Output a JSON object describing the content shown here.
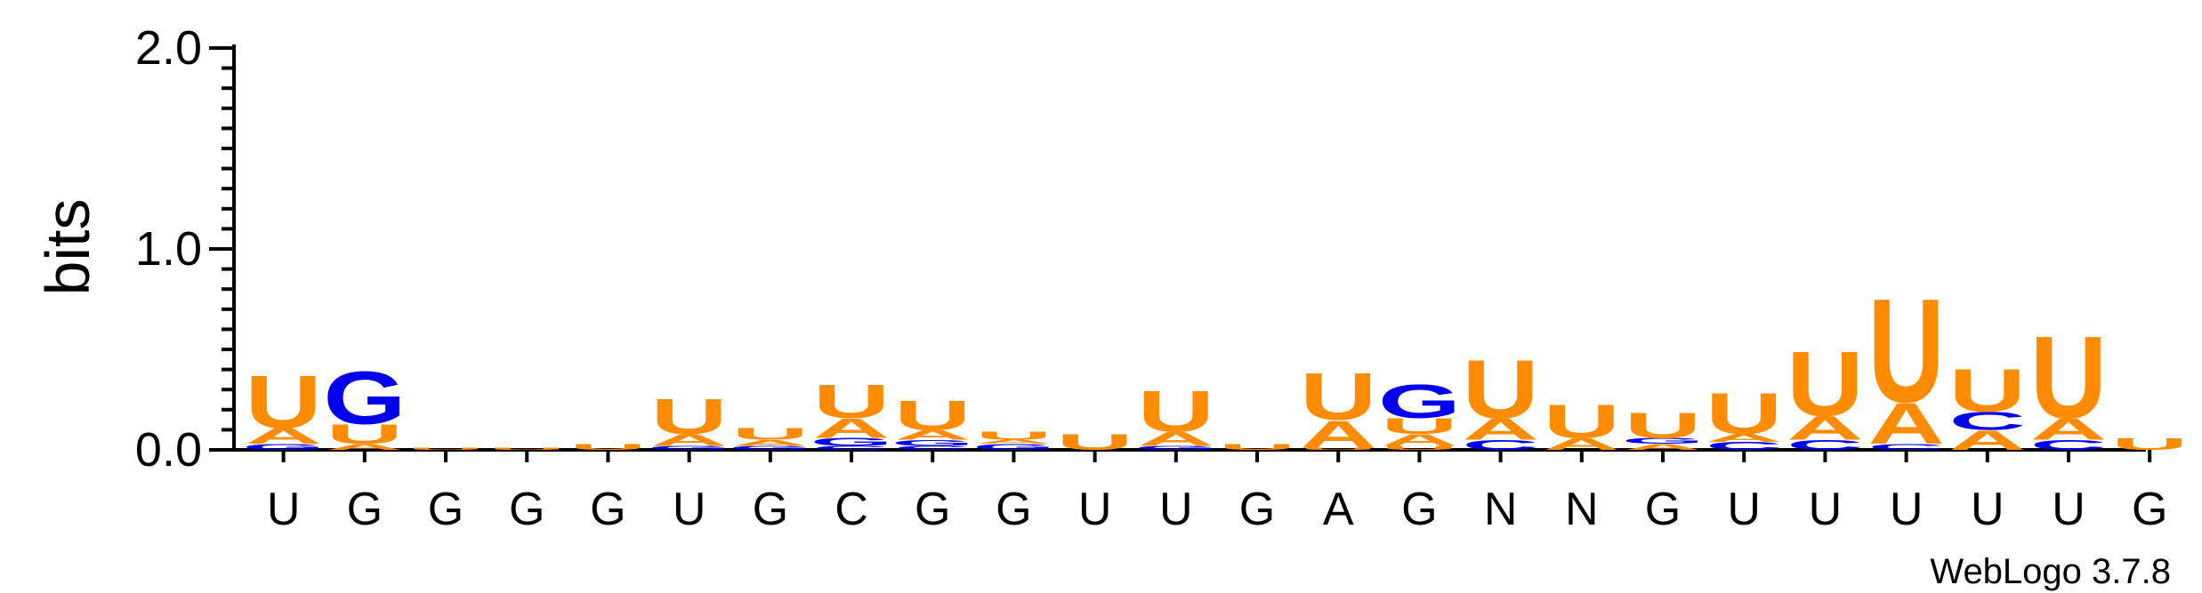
{
  "chart_data": {
    "type": "sequence-logo",
    "ylabel": "bits",
    "ylim": [
      0,
      2.0
    ],
    "y_ticks": [
      "0.0",
      "1.0",
      "2.0"
    ],
    "credit": "WebLogo 3.7.8",
    "colors": {
      "U": "#ff8c00",
      "A": "#ff8c00",
      "G": "#0000ee",
      "C": "#0000ee"
    },
    "positions": [
      {
        "label": "U",
        "stack": [
          {
            "base": "G",
            "bits": 0.03
          },
          {
            "base": "A",
            "bits": 0.08
          },
          {
            "base": "U",
            "bits": 0.27
          }
        ]
      },
      {
        "label": "G",
        "stack": [
          {
            "base": "A",
            "bits": 0.03
          },
          {
            "base": "U",
            "bits": 0.1
          },
          {
            "base": "G",
            "bits": 0.27
          }
        ]
      },
      {
        "label": "G",
        "stack": [
          {
            "base": "U",
            "bits": 0.01
          }
        ]
      },
      {
        "label": "G",
        "stack": [
          {
            "base": "U",
            "bits": 0.01
          }
        ]
      },
      {
        "label": "G",
        "stack": [
          {
            "base": "U",
            "bits": 0.03
          }
        ]
      },
      {
        "label": "U",
        "stack": [
          {
            "base": "G",
            "bits": 0.02
          },
          {
            "base": "A",
            "bits": 0.06
          },
          {
            "base": "U",
            "bits": 0.18
          }
        ]
      },
      {
        "label": "G",
        "stack": [
          {
            "base": "G",
            "bits": 0.02
          },
          {
            "base": "A",
            "bits": 0.03
          },
          {
            "base": "U",
            "bits": 0.06
          }
        ]
      },
      {
        "label": "C",
        "stack": [
          {
            "base": "C",
            "bits": 0.02
          },
          {
            "base": "G",
            "bits": 0.04
          },
          {
            "base": "A",
            "bits": 0.1
          },
          {
            "base": "U",
            "bits": 0.17
          }
        ]
      },
      {
        "label": "G",
        "stack": [
          {
            "base": "C",
            "bits": 0.02
          },
          {
            "base": "G",
            "bits": 0.03
          },
          {
            "base": "A",
            "bits": 0.05
          },
          {
            "base": "U",
            "bits": 0.15
          }
        ]
      },
      {
        "label": "G",
        "stack": [
          {
            "base": "G",
            "bits": 0.03
          },
          {
            "base": "A",
            "bits": 0.02
          },
          {
            "base": "U",
            "bits": 0.04
          }
        ]
      },
      {
        "label": "U",
        "stack": [
          {
            "base": "U",
            "bits": 0.08
          }
        ]
      },
      {
        "label": "U",
        "stack": [
          {
            "base": "G",
            "bits": 0.02
          },
          {
            "base": "A",
            "bits": 0.07
          },
          {
            "base": "U",
            "bits": 0.21
          }
        ]
      },
      {
        "label": "G",
        "stack": [
          {
            "base": "U",
            "bits": 0.03
          }
        ]
      },
      {
        "label": "A",
        "stack": [
          {
            "base": "U",
            "bits": 0.01
          },
          {
            "base": "A",
            "bits": 0.14
          },
          {
            "base": "U",
            "bits": 0.24
          }
        ]
      },
      {
        "label": "G",
        "stack": [
          {
            "base": "U",
            "bits": 0.02
          },
          {
            "base": "A",
            "bits": 0.06
          },
          {
            "base": "U",
            "bits": 0.08
          },
          {
            "base": "G",
            "bits": 0.17
          }
        ]
      },
      {
        "label": "N",
        "stack": [
          {
            "base": "C",
            "bits": 0.05
          },
          {
            "base": "A",
            "bits": 0.11
          },
          {
            "base": "U",
            "bits": 0.3
          }
        ]
      },
      {
        "label": "N",
        "stack": [
          {
            "base": "A",
            "bits": 0.06
          },
          {
            "base": "U",
            "bits": 0.17
          }
        ]
      },
      {
        "label": "G",
        "stack": [
          {
            "base": "A",
            "bits": 0.03
          },
          {
            "base": "G",
            "bits": 0.03
          },
          {
            "base": "U",
            "bits": 0.13
          }
        ]
      },
      {
        "label": "U",
        "stack": [
          {
            "base": "C",
            "bits": 0.04
          },
          {
            "base": "A",
            "bits": 0.04
          },
          {
            "base": "U",
            "bits": 0.21
          }
        ]
      },
      {
        "label": "U",
        "stack": [
          {
            "base": "C",
            "bits": 0.05
          },
          {
            "base": "A",
            "bits": 0.12
          },
          {
            "base": "U",
            "bits": 0.33
          }
        ]
      },
      {
        "label": "U",
        "stack": [
          {
            "base": "C",
            "bits": 0.03
          },
          {
            "base": "A",
            "bits": 0.21
          },
          {
            "base": "U",
            "bits": 0.53
          }
        ]
      },
      {
        "label": "U",
        "stack": [
          {
            "base": "A",
            "bits": 0.1
          },
          {
            "base": "C",
            "bits": 0.09
          },
          {
            "base": "U",
            "bits": 0.22
          }
        ]
      },
      {
        "label": "U",
        "stack": [
          {
            "base": "C",
            "bits": 0.05
          },
          {
            "base": "A",
            "bits": 0.11
          },
          {
            "base": "U",
            "bits": 0.42
          }
        ]
      },
      {
        "label": "G",
        "stack": [
          {
            "base": "U",
            "bits": 0.06
          }
        ]
      }
    ]
  }
}
